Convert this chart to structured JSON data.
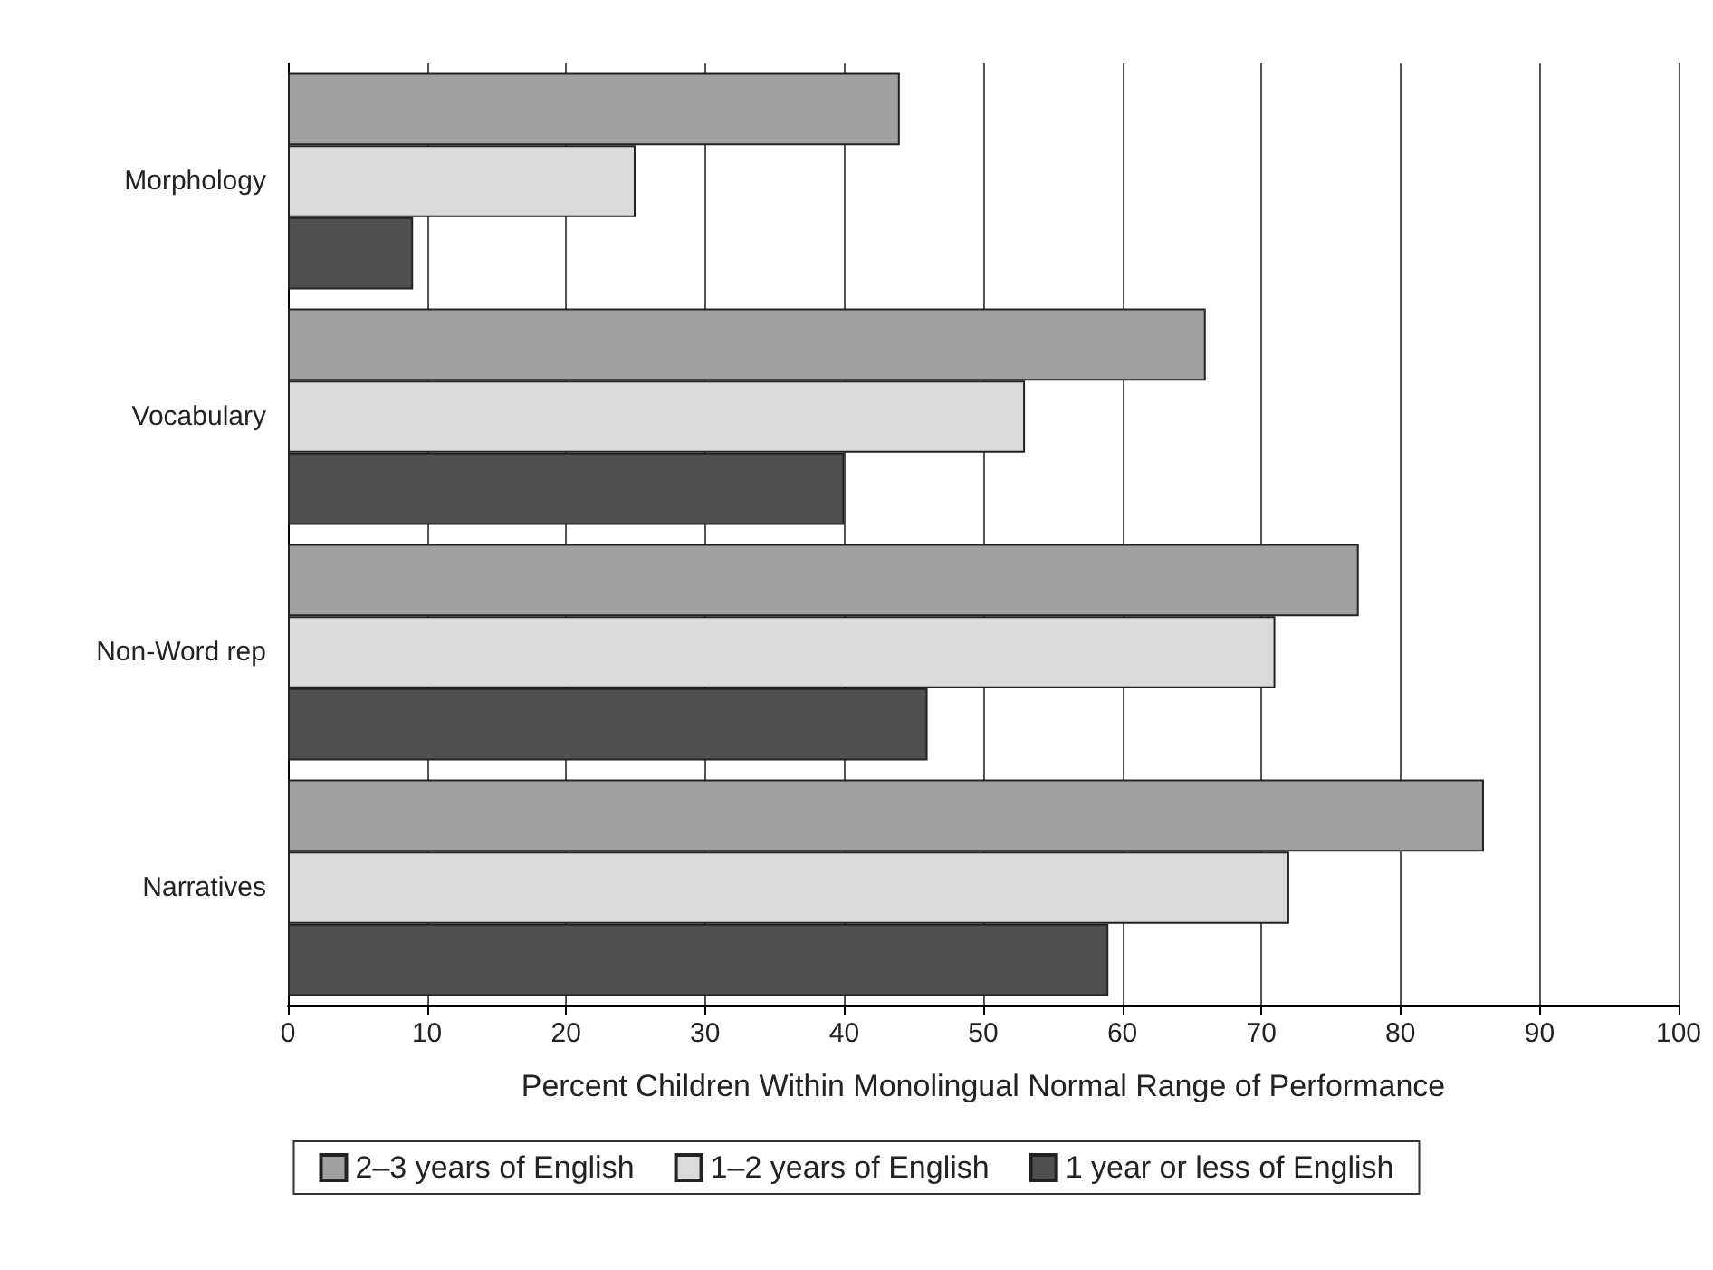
{
  "chart_data": {
    "type": "bar",
    "orientation": "horizontal",
    "xlabel": "Percent Children Within Monolingual Normal Range of Performance",
    "categories": [
      "Morphology",
      "Vocabulary",
      "Non-Word rep",
      "Narratives"
    ],
    "series": [
      {
        "name": "2–3 years of English",
        "color": "#a0a0a0",
        "values": [
          44,
          66,
          77,
          86
        ]
      },
      {
        "name": "1–2 years of English",
        "color": "#dadada",
        "values": [
          25,
          53,
          71,
          72
        ]
      },
      {
        "name": "1 year or less of English",
        "color": "#4f4f4f",
        "values": [
          9,
          40,
          46,
          59
        ]
      }
    ],
    "xlim": [
      0,
      100
    ],
    "xticks": [
      0,
      10,
      20,
      30,
      40,
      50,
      60,
      70,
      80,
      90,
      100
    ],
    "grid": "x",
    "legend": "bottom"
  }
}
